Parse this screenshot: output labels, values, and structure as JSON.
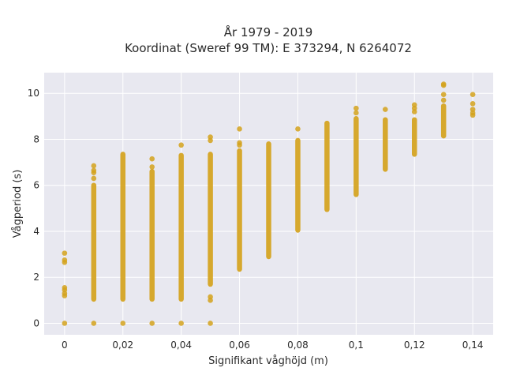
{
  "chart_data": {
    "type": "scatter",
    "title_line1": "År 1979 - 2019",
    "title_line2": "Koordinat (Sweref 99 TM): E 373294, N 6264072",
    "xlabel": "Signifikant våghöjd (m)",
    "ylabel": "Vågperiod (s)",
    "xlim": [
      -0.007,
      0.147
    ],
    "ylim": [
      -0.5,
      10.9
    ],
    "x_ticks": [
      0,
      0.02,
      0.04,
      0.06,
      0.08,
      0.1,
      0.12,
      0.14
    ],
    "x_tick_labels": [
      "0",
      "0,02",
      "0,04",
      "0,06",
      "0,08",
      "0,1",
      "0,12",
      "0,14"
    ],
    "y_ticks": [
      0,
      2,
      4,
      6,
      8,
      10
    ],
    "y_tick_labels": [
      "0",
      "2",
      "4",
      "6",
      "8",
      "10"
    ],
    "grid": true,
    "marker_color": "#d4a21c",
    "plot_bg": "#e8e8f0",
    "columns": [
      {
        "x": 0,
        "band": null,
        "extra": [
          0,
          1.2,
          1.3,
          1.45,
          1.55,
          2.65,
          2.75,
          3.05
        ]
      },
      {
        "x": 0.01,
        "band": [
          1.05,
          6.0
        ],
        "extra": [
          0,
          6.3,
          6.55,
          6.65,
          6.85
        ]
      },
      {
        "x": 0.02,
        "band": [
          1.05,
          7.35
        ],
        "extra": [
          0
        ]
      },
      {
        "x": 0.03,
        "band": [
          1.05,
          6.6
        ],
        "extra": [
          0,
          6.8,
          7.15
        ]
      },
      {
        "x": 0.04,
        "band": [
          1.05,
          7.3
        ],
        "extra": [
          0,
          7.75
        ]
      },
      {
        "x": 0.05,
        "band": [
          1.7,
          7.35
        ],
        "extra": [
          0,
          1.0,
          1.15,
          7.95,
          8.1
        ]
      },
      {
        "x": 0.06,
        "band": [
          2.35,
          7.5
        ],
        "extra": [
          7.75,
          7.85,
          8.45
        ]
      },
      {
        "x": 0.07,
        "band": [
          2.9,
          7.8
        ],
        "extra": []
      },
      {
        "x": 0.08,
        "band": [
          4.05,
          7.95
        ],
        "extra": [
          8.45
        ]
      },
      {
        "x": 0.09,
        "band": [
          4.95,
          8.7
        ],
        "extra": []
      },
      {
        "x": 0.1,
        "band": [
          5.6,
          8.9
        ],
        "extra": [
          9.15,
          9.35
        ]
      },
      {
        "x": 0.11,
        "band": [
          6.7,
          8.85
        ],
        "extra": [
          9.3
        ]
      },
      {
        "x": 0.12,
        "band": [
          7.35,
          8.85
        ],
        "extra": [
          9.2,
          9.35,
          9.5
        ]
      },
      {
        "x": 0.13,
        "band": [
          8.15,
          9.45
        ],
        "extra": [
          9.7,
          9.95,
          10.35,
          10.4
        ]
      },
      {
        "x": 0.14,
        "band": null,
        "extra": [
          9.05,
          9.15,
          9.3,
          9.55,
          9.95
        ]
      }
    ]
  }
}
